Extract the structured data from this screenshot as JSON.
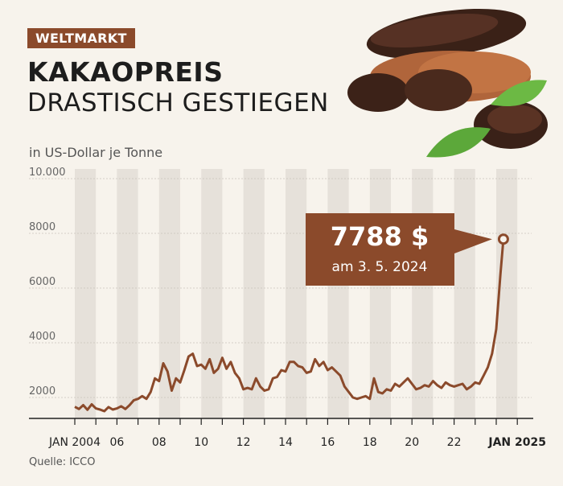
{
  "header": {
    "tag": "WELTMARKT",
    "title": "KAKAOPREIS",
    "subtitle": "DRASTISCH GESTIEGEN"
  },
  "unit_label": "in US-Dollar je Tonne",
  "source": "Quelle: ICCO",
  "colors": {
    "line": "#8b4a2b",
    "stripe": "#e6e1da",
    "callout": "#8b4a2b",
    "tag": "#8b4a2b"
  },
  "images": [
    {
      "name": "cocoa-pod-beans-leaves-photo"
    }
  ],
  "chart_data": {
    "type": "line",
    "title": "KAKAOPREIS DRASTISCH GESTIEGEN",
    "ylabel": "in US-Dollar je Tonne",
    "ylim": [
      1000,
      10000
    ],
    "yticks": [
      2000,
      4000,
      6000,
      8000,
      10000
    ],
    "ytick_labels": [
      "2000",
      "4000",
      "6000",
      "8000",
      "10.000"
    ],
    "xlim": [
      2004,
      2025.3
    ],
    "xticks": [
      2004,
      2006,
      2008,
      2010,
      2012,
      2014,
      2016,
      2018,
      2020,
      2022,
      2025
    ],
    "xtick_labels": [
      "JAN 2004",
      "06",
      "08",
      "10",
      "12",
      "14",
      "16",
      "18",
      "20",
      "22",
      "JAN 2025"
    ],
    "grid": "vertical stripes per year",
    "series": [
      {
        "x": [
          2004.0,
          2004.2,
          2004.4,
          2004.6,
          2004.8,
          2005.0,
          2005.2,
          2005.4,
          2005.6,
          2005.8,
          2006.0,
          2006.2,
          2006.4,
          2006.6,
          2006.8,
          2007.0,
          2007.2,
          2007.4,
          2007.6,
          2007.8,
          2008.0,
          2008.2,
          2008.4,
          2008.6,
          2008.8,
          2009.0,
          2009.2,
          2009.4,
          2009.6,
          2009.8,
          2010.0,
          2010.2,
          2010.4,
          2010.6,
          2010.8,
          2011.0,
          2011.2,
          2011.4,
          2011.6,
          2011.8,
          2012.0,
          2012.2,
          2012.4,
          2012.6,
          2012.8,
          2013.0,
          2013.2,
          2013.4,
          2013.6,
          2013.8,
          2014.0,
          2014.2,
          2014.4,
          2014.6,
          2014.8,
          2015.0,
          2015.2,
          2015.4,
          2015.6,
          2015.8,
          2016.0,
          2016.2,
          2016.4,
          2016.6,
          2016.8,
          2017.0,
          2017.2,
          2017.4,
          2017.6,
          2017.8,
          2018.0,
          2018.2,
          2018.4,
          2018.6,
          2018.8,
          2019.0,
          2019.2,
          2019.4,
          2019.6,
          2019.8,
          2020.0,
          2020.2,
          2020.4,
          2020.6,
          2020.8,
          2021.0,
          2021.2,
          2021.4,
          2021.6,
          2021.8,
          2022.0,
          2022.2,
          2022.4,
          2022.6,
          2022.8,
          2023.0,
          2023.2,
          2023.4,
          2023.6,
          2023.8,
          2024.0,
          2024.2,
          2024.34
        ],
        "y": [
          1660,
          1580,
          1720,
          1550,
          1750,
          1600,
          1560,
          1500,
          1650,
          1560,
          1600,
          1680,
          1580,
          1720,
          1900,
          1950,
          2050,
          1950,
          2200,
          2700,
          2600,
          3250,
          2950,
          2250,
          2700,
          2550,
          3000,
          3500,
          3600,
          3150,
          3200,
          3050,
          3400,
          2900,
          3050,
          3450,
          3050,
          3300,
          2900,
          2700,
          2300,
          2350,
          2300,
          2700,
          2400,
          2250,
          2300,
          2700,
          2750,
          3000,
          2950,
          3300,
          3300,
          3150,
          3100,
          2900,
          2950,
          3400,
          3150,
          3300,
          3000,
          3100,
          2950,
          2800,
          2400,
          2200,
          2000,
          1950,
          2000,
          2050,
          1950,
          2700,
          2200,
          2150,
          2300,
          2250,
          2500,
          2400,
          2550,
          2700,
          2500,
          2300,
          2350,
          2450,
          2400,
          2600,
          2450,
          2350,
          2550,
          2450,
          2400,
          2450,
          2500,
          2300,
          2400,
          2550,
          2500,
          2800,
          3100,
          3600,
          4500,
          6500,
          7788
        ]
      }
    ],
    "annotations": [
      {
        "value_label": "7788 $",
        "date_label": "am 3. 5. 2024",
        "x": 2024.34,
        "y": 7788
      }
    ]
  }
}
